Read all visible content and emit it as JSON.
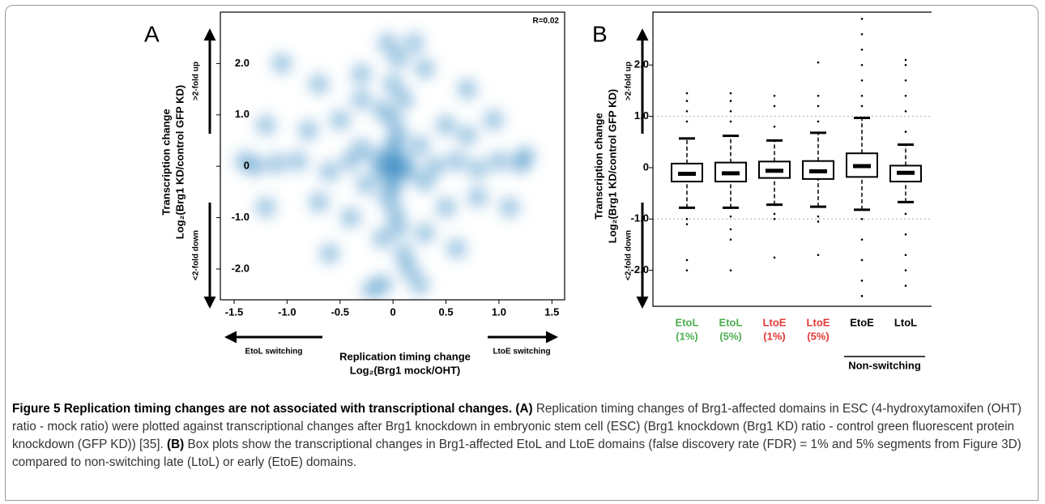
{
  "chart_data": [
    {
      "type": "scatter",
      "panel": "A",
      "annotation": "R=0.02",
      "ylabel": [
        "Transcription change",
        "Log₂(Brg1 KD/control GFP KD)"
      ],
      "xlabel": [
        "Replication timing change",
        "Log₂(Brg1 mock/OHT)"
      ],
      "y_arrow_labels": [
        ">2-fold up",
        "<2-fold down"
      ],
      "x_arrow_labels": [
        "EtoL switching",
        "LtoE switching"
      ],
      "color": "#3a8cc4",
      "xlim": [
        -1.63,
        1.62
      ],
      "ylim": [
        -2.6,
        3.0
      ],
      "xticks": [
        -1.5,
        {
          "value": -1,
          "label": "-1.0"
        },
        -0.5,
        0,
        0.5,
        {
          "value": 1,
          "label": "1.0"
        },
        1.5
      ],
      "yticks": [
        {
          "value": 2,
          "label": "2.0"
        },
        {
          "value": 1,
          "label": "1.0"
        },
        0,
        {
          "value": -1,
          "label": "-1.0"
        },
        {
          "value": -2,
          "label": "-2.0"
        }
      ],
      "x": [
        0,
        0.05,
        -0.05,
        0,
        0,
        0.1,
        -0.1,
        0,
        0,
        -0.15,
        0.15,
        0.05,
        -0.05,
        0,
        0.02,
        0.1,
        -0.1,
        0.05,
        -0.1,
        0,
        0.1,
        0.05,
        -0.05,
        0.2,
        0.15,
        -0.1,
        0.25,
        -0.4,
        -0.6,
        -0.9,
        -1.1,
        -1.3,
        -1.4,
        0.4,
        0.6,
        0.8,
        1.0,
        1.2,
        1.25,
        -0.8,
        -0.5,
        -0.7,
        -0.4,
        0.5,
        0.7,
        0.5,
        0.8,
        -1.2,
        -1.05,
        -0.3,
        0.3,
        0.7,
        -0.7,
        -0.6,
        0.6,
        -0.2,
        1.1,
        -1.2,
        0.95,
        0.3,
        -0.3,
        0.25,
        -0.25,
        0.3,
        -0.3
      ],
      "y": [
        0,
        -0.05,
        0.05,
        0.2,
        -0.2,
        0.1,
        -0.1,
        0.4,
        -0.4,
        0.15,
        -0.1,
        0.6,
        -0.6,
        0.9,
        -0.9,
        1.3,
        1.1,
        -1.2,
        -1.4,
        1.6,
        -1.7,
        2.1,
        2.4,
        2.4,
        -2.0,
        -2.3,
        -2.3,
        0.1,
        -0.1,
        0.1,
        0.05,
        0,
        0.1,
        0,
        0.1,
        -0.05,
        0.1,
        0.05,
        0.2,
        0.7,
        0.9,
        -0.7,
        -1.0,
        0.8,
        0.6,
        -0.8,
        -0.6,
        -0.8,
        2.0,
        1.8,
        1.9,
        1.5,
        1.6,
        -1.7,
        -1.6,
        -2.4,
        -0.8,
        0.8,
        0.9,
        -1.3,
        1.3,
        0.4,
        -0.35,
        -0.3,
        0.35
      ]
    },
    {
      "type": "box",
      "panel": "B",
      "ylabel": [
        "Transcription change",
        "Log₂(Brg1 KD/control GFP KD)"
      ],
      "y_arrow_labels": [
        ">2-fold up",
        "<2-fold down"
      ],
      "categories": [
        "EtoL",
        "EtoL",
        "LtoE",
        "LtoE",
        "EtoE",
        "LtoL"
      ],
      "category_sublabels": [
        "(1%)",
        "(5%)",
        "(1%)",
        "(5%)",
        null,
        null
      ],
      "category_colors": [
        "#4caf50",
        "#4caf50",
        "#e53935",
        "#e53935",
        "#000000",
        "#000000"
      ],
      "group_label": "Non-switching",
      "ylim": [
        -2.7,
        3.03
      ],
      "yticks": [
        {
          "value": 2,
          "label": "2.0"
        },
        {
          "value": 1,
          "label": "1.0"
        },
        0,
        {
          "value": -1,
          "label": "-1.0"
        },
        {
          "value": -2,
          "label": "-2.0"
        }
      ],
      "reference_lines": [
        1,
        -1
      ],
      "whisker_low": [
        -0.78,
        -0.78,
        -0.72,
        -0.76,
        -0.82,
        -0.67
      ],
      "q1": [
        -0.27,
        -0.27,
        -0.2,
        -0.22,
        -0.18,
        -0.27
      ],
      "median": [
        -0.12,
        -0.11,
        -0.06,
        -0.07,
        0.03,
        -0.1
      ],
      "q3": [
        0.08,
        0.1,
        0.12,
        0.13,
        0.28,
        0.04
      ],
      "whisker_high": [
        0.57,
        0.62,
        0.53,
        0.68,
        0.97,
        0.45
      ],
      "outliers": [
        [
          1.45,
          1.3,
          1.1,
          0.9,
          -1.0,
          -1.1,
          -1.8,
          -2.0
        ],
        [
          1.45,
          1.3,
          1.1,
          0.9,
          -0.95,
          -1.2,
          -1.4,
          -2.0
        ],
        [
          1.4,
          1.2,
          0.8,
          -0.9,
          -1.0,
          -1.75
        ],
        [
          2.05,
          1.4,
          1.2,
          0.9,
          -0.95,
          -1.05,
          -1.7
        ],
        [
          2.9,
          2.6,
          2.3,
          2.0,
          1.7,
          1.4,
          1.2,
          -1.0,
          -1.4,
          -1.8,
          -2.2,
          -2.5
        ],
        [
          2.1,
          2.0,
          1.7,
          1.4,
          1.1,
          0.7,
          -0.9,
          -1.3,
          -1.7,
          -2.0,
          -2.3
        ]
      ]
    }
  ],
  "caption": {
    "label": "Figure 5",
    "title": "Replication timing changes are not associated with transcriptional changes.",
    "parts": [
      {
        "tag": "(A)",
        "text": "Replication timing changes of Brg1-affected domains in ESC (4-hydroxytamoxifen (OHT) ratio - mock ratio) were plotted against transcriptional changes after Brg1 knockdown in embryonic stem cell (ESC) (Brg1 knockdown (Brg1 KD) ratio - control green fluorescent protein knockdown (GFP KD)) [35]."
      },
      {
        "tag": "(B)",
        "text": "Box plots show the transcriptional changes in Brg1-affected EtoL and LtoE domains (false discovery rate (FDR) = 1% and 5% segments from Figure 3D) compared to non-switching late (LtoL) or early (EtoE) domains."
      }
    ]
  }
}
